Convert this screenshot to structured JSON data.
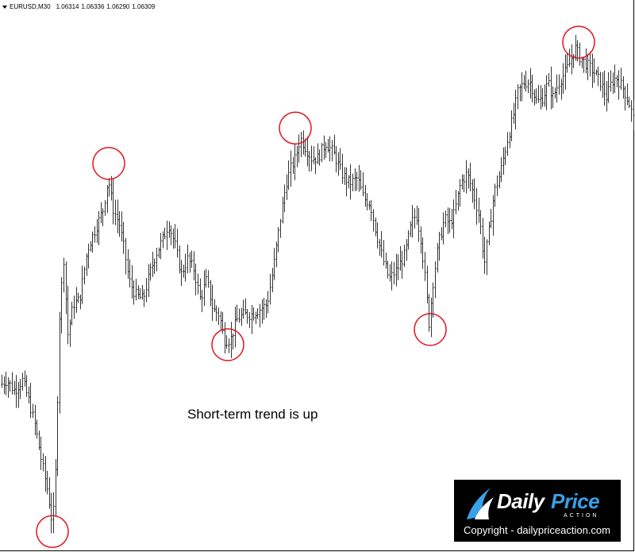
{
  "header": {
    "symbol": "EURUSD,M30",
    "ohlc": [
      "1.06314",
      "1.06336",
      "1.06290",
      "1.06309"
    ]
  },
  "annotation": "Short-term trend is up",
  "logo": {
    "brand_daily": "Daily",
    "brand_price": "Price",
    "brand_action": "ACTION",
    "copyright": "Copyright - dailypriceaction.com",
    "accent_color": "#3aa0e8"
  },
  "chart_data": {
    "type": "ohlc_bars",
    "instrument": "EURUSD",
    "timeframe": "M30",
    "bar_color": "#333333",
    "marker_color": "#e0141e",
    "ylim": [
      0,
      100
    ],
    "y_units": "relative price level (0 = lowest low, 100 = highest high)",
    "path": [
      [
        0,
        30
      ],
      [
        8,
        31
      ],
      [
        18,
        29
      ],
      [
        28,
        31
      ],
      [
        36,
        27
      ],
      [
        44,
        22
      ],
      [
        52,
        15
      ],
      [
        60,
        9
      ],
      [
        66,
        2
      ],
      [
        70,
        14
      ],
      [
        75,
        45
      ],
      [
        80,
        55
      ],
      [
        85,
        40
      ],
      [
        92,
        46
      ],
      [
        100,
        47
      ],
      [
        110,
        57
      ],
      [
        120,
        61
      ],
      [
        130,
        65
      ],
      [
        136,
        71
      ],
      [
        142,
        65
      ],
      [
        150,
        62
      ],
      [
        156,
        57
      ],
      [
        162,
        51
      ],
      [
        170,
        48
      ],
      [
        180,
        47
      ],
      [
        188,
        52
      ],
      [
        196,
        56
      ],
      [
        205,
        59
      ],
      [
        212,
        62
      ],
      [
        220,
        58
      ],
      [
        228,
        52
      ],
      [
        236,
        55
      ],
      [
        244,
        53
      ],
      [
        252,
        47
      ],
      [
        260,
        51
      ],
      [
        268,
        45
      ],
      [
        276,
        44
      ],
      [
        282,
        39
      ],
      [
        290,
        39
      ],
      [
        298,
        43
      ],
      [
        306,
        44
      ],
      [
        316,
        44
      ],
      [
        326,
        45
      ],
      [
        336,
        46
      ],
      [
        344,
        53
      ],
      [
        352,
        62
      ],
      [
        360,
        70
      ],
      [
        366,
        73
      ],
      [
        372,
        75
      ],
      [
        378,
        79
      ],
      [
        385,
        77
      ],
      [
        392,
        75
      ],
      [
        400,
        75
      ],
      [
        410,
        78
      ],
      [
        420,
        76
      ],
      [
        430,
        72
      ],
      [
        440,
        70
      ],
      [
        450,
        71
      ],
      [
        458,
        67
      ],
      [
        466,
        66
      ],
      [
        474,
        60
      ],
      [
        482,
        55
      ],
      [
        490,
        51
      ],
      [
        500,
        53
      ],
      [
        510,
        56
      ],
      [
        518,
        62
      ],
      [
        524,
        64
      ],
      [
        530,
        59
      ],
      [
        536,
        50
      ],
      [
        540,
        42
      ],
      [
        545,
        50
      ],
      [
        552,
        58
      ],
      [
        560,
        63
      ],
      [
        566,
        62
      ],
      [
        572,
        64
      ],
      [
        580,
        70
      ],
      [
        588,
        72
      ],
      [
        596,
        68
      ],
      [
        604,
        63
      ],
      [
        610,
        54
      ],
      [
        616,
        61
      ],
      [
        622,
        68
      ],
      [
        630,
        72
      ],
      [
        638,
        78
      ],
      [
        646,
        83
      ],
      [
        652,
        88
      ],
      [
        660,
        90
      ],
      [
        668,
        90
      ],
      [
        676,
        86
      ],
      [
        684,
        87
      ],
      [
        690,
        90
      ],
      [
        696,
        87
      ],
      [
        704,
        90
      ],
      [
        712,
        92
      ],
      [
        718,
        94
      ],
      [
        724,
        97
      ],
      [
        730,
        95
      ],
      [
        736,
        94
      ],
      [
        742,
        93
      ],
      [
        748,
        92
      ],
      [
        756,
        90
      ],
      [
        764,
        87
      ],
      [
        770,
        90
      ],
      [
        776,
        91
      ],
      [
        784,
        89
      ],
      [
        792,
        86
      ],
      [
        799,
        82
      ]
    ],
    "swing_points": [
      {
        "type": "low",
        "x": 66,
        "y": 2
      },
      {
        "type": "high",
        "x": 137,
        "y": 73
      },
      {
        "type": "low",
        "x": 287,
        "y": 39
      },
      {
        "type": "high",
        "x": 372,
        "y": 80
      },
      {
        "type": "low",
        "x": 542,
        "y": 42
      },
      {
        "type": "high",
        "x": 729,
        "y": 97
      }
    ]
  }
}
